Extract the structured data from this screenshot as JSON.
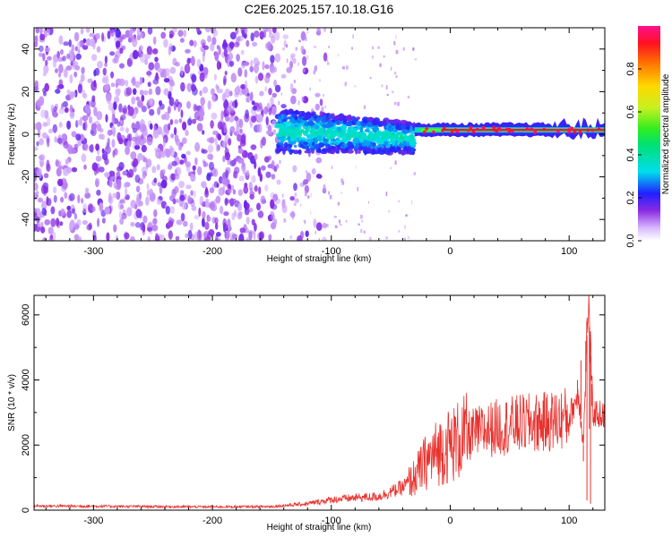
{
  "title": "C2E6.2025.157.10.18.G16",
  "chart_data": [
    {
      "type": "heatmap",
      "xlabel": "Height of straight line (km)",
      "ylabel": "Frequency (Hz)",
      "xlim": [
        -350,
        130
      ],
      "ylim": [
        -50,
        50
      ],
      "xticks": [
        -300,
        -200,
        -100,
        0,
        100
      ],
      "yticks": [
        -40,
        -20,
        0,
        20,
        40
      ],
      "colorbar": {
        "label": "Normalized spectral amplitude",
        "range": [
          0,
          1
        ],
        "ticks": [
          "0.0",
          "0.2",
          "0.4",
          "0.6",
          "0.8"
        ],
        "tick_values": [
          0,
          0.2,
          0.4,
          0.6,
          0.8
        ]
      },
      "features": [
        {
          "x_range": [
            -350,
            -145
          ],
          "freq_range": [
            -50,
            50
          ],
          "amplitude": 0.05,
          "pattern": "noise"
        },
        {
          "x_range": [
            -145,
            -30
          ],
          "freq_center": 0,
          "freq_halfwidth": 10,
          "amplitude": 0.25,
          "pattern": "band"
        },
        {
          "x_range": [
            -30,
            130
          ],
          "freq_center": 2,
          "freq_halfwidth": 3,
          "amplitude": 0.95,
          "pattern": "line"
        }
      ]
    },
    {
      "type": "line",
      "xlabel": "Height of straight line (km)",
      "ylabel": "SNR (10 * v/v)",
      "xlim": [
        -350,
        130
      ],
      "ylim": [
        0,
        6600
      ],
      "xticks": [
        -300,
        -200,
        -100,
        0,
        100
      ],
      "yticks": [
        0,
        2000,
        4000,
        6000
      ],
      "series": [
        {
          "color": "#e8322e",
          "x": [
            -350,
            -300,
            -250,
            -200,
            -150,
            -120,
            -100,
            -80,
            -60,
            -40,
            -30,
            -20,
            -10,
            0,
            10,
            20,
            30,
            40,
            60,
            80,
            100,
            108,
            112,
            116,
            120,
            130
          ],
          "y": [
            130,
            120,
            110,
            100,
            110,
            200,
            320,
            380,
            420,
            700,
            1000,
            1500,
            1800,
            2000,
            2200,
            2350,
            2450,
            2550,
            2650,
            2700,
            2850,
            3600,
            2000,
            6500,
            3000,
            2900
          ]
        }
      ]
    }
  ]
}
